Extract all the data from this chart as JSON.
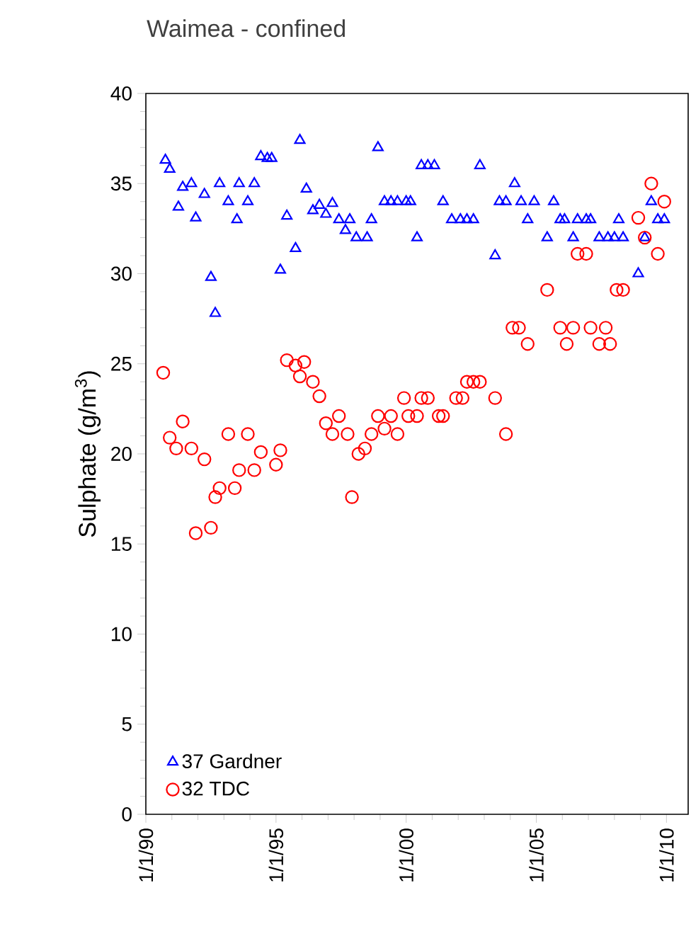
{
  "chart_data": {
    "type": "scatter",
    "title": "Waimea - confined",
    "ylabel": "Sulphate (g/m$^{3}$)",
    "xlim": [
      "1990-01-01",
      "2010-11-01"
    ],
    "ylim": [
      0,
      40
    ],
    "xticks": [
      {
        "value": "1990-01-01",
        "label": "1/1/90"
      },
      {
        "value": "1995-01-01",
        "label": "1/1/95"
      },
      {
        "value": "2000-01-01",
        "label": "1/1/00"
      },
      {
        "value": "2005-01-01",
        "label": "1/1/05"
      },
      {
        "value": "2010-01-01",
        "label": "1/1/10"
      }
    ],
    "yticks": [
      0,
      5,
      10,
      15,
      20,
      25,
      30,
      35,
      40
    ],
    "legend": "bottom left",
    "series": [
      {
        "name": "37 Gardner",
        "color": "#0000ff",
        "marker": "triangle",
        "x": [
          "1990-10",
          "1990-12",
          "1991-04",
          "1991-06",
          "1991-10",
          "1991-12",
          "1992-04",
          "1992-07",
          "1992-09",
          "1992-11",
          "1993-03",
          "1993-07",
          "1993-08",
          "1993-12",
          "1994-03",
          "1994-06",
          "1994-09",
          "1994-11",
          "1995-03",
          "1995-06",
          "1995-10",
          "1995-12",
          "1996-03",
          "1996-06",
          "1996-09",
          "1996-12",
          "1997-03",
          "1997-06",
          "1997-09",
          "1997-11",
          "1998-02",
          "1998-07",
          "1998-09",
          "1998-12",
          "1999-03",
          "1999-06",
          "1999-09",
          "2000-01",
          "2000-03",
          "2000-06",
          "2000-08",
          "2000-11",
          "2001-02",
          "2001-06",
          "2001-10",
          "2002-02",
          "2002-05",
          "2002-08",
          "2002-11",
          "2003-06",
          "2003-08",
          "2003-11",
          "2004-03",
          "2004-06",
          "2004-09",
          "2004-12",
          "2005-06",
          "2005-09",
          "2005-12",
          "2006-02",
          "2006-06",
          "2006-08",
          "2006-12",
          "2007-02",
          "2007-06",
          "2007-10",
          "2008-01",
          "2008-03",
          "2008-05",
          "2008-12",
          "2009-03",
          "2009-06",
          "2009-09",
          "2009-12"
        ],
        "values": [
          36.3,
          35.8,
          33.7,
          34.8,
          35.0,
          33.1,
          34.4,
          29.8,
          27.8,
          35.0,
          34.0,
          33.0,
          35.0,
          34.0,
          35.0,
          36.5,
          36.4,
          36.4,
          30.2,
          33.2,
          31.4,
          37.4,
          34.7,
          33.5,
          33.8,
          33.3,
          33.9,
          33.0,
          32.4,
          33.0,
          32.0,
          32.0,
          33.0,
          37.0,
          34.0,
          34.0,
          34.0,
          34.0,
          34.0,
          32.0,
          36.0,
          36.0,
          36.0,
          34.0,
          33.0,
          33.0,
          33.0,
          33.0,
          36.0,
          31.0,
          34.0,
          34.0,
          35.0,
          34.0,
          33.0,
          34.0,
          32.0,
          34.0,
          33.0,
          33.0,
          32.0,
          33.0,
          33.0,
          33.0,
          32.0,
          32.0,
          32.0,
          33.0,
          32.0,
          30.0,
          32.0,
          34.0,
          33.0,
          33.0
        ]
      },
      {
        "name": "32 TDC",
        "color": "#ff0000",
        "marker": "circle",
        "x": [
          "1990-09",
          "1990-12",
          "1991-03",
          "1991-06",
          "1991-10",
          "1991-12",
          "1992-04",
          "1992-07",
          "1992-09",
          "1992-11",
          "1993-03",
          "1993-06",
          "1993-08",
          "1993-12",
          "1994-03",
          "1994-06",
          "1995-01",
          "1995-03",
          "1995-06",
          "1995-10",
          "1995-12",
          "1996-02",
          "1996-06",
          "1996-09",
          "1996-12",
          "1997-03",
          "1997-06",
          "1997-10",
          "1997-12",
          "1998-03",
          "1998-06",
          "1998-09",
          "1998-12",
          "1999-03",
          "1999-06",
          "1999-09",
          "1999-12",
          "2000-02",
          "2000-06",
          "2000-08",
          "2000-11",
          "2001-04",
          "2001-06",
          "2001-12",
          "2002-03",
          "2002-05",
          "2002-08",
          "2002-11",
          "2003-06",
          "2003-11",
          "2004-02",
          "2004-05",
          "2004-09",
          "2005-06",
          "2005-12",
          "2006-03",
          "2006-06",
          "2006-08",
          "2006-12",
          "2007-02",
          "2007-06",
          "2007-09",
          "2007-11",
          "2008-02",
          "2008-05",
          "2008-12",
          "2009-03",
          "2009-06",
          "2009-09",
          "2009-12"
        ],
        "values": [
          24.5,
          20.9,
          20.3,
          21.8,
          20.3,
          15.6,
          19.7,
          15.9,
          17.6,
          18.1,
          21.1,
          18.1,
          19.1,
          21.1,
          19.1,
          20.1,
          19.4,
          20.2,
          25.2,
          24.9,
          24.3,
          25.1,
          24.0,
          23.2,
          21.7,
          21.1,
          22.1,
          21.1,
          17.6,
          20.0,
          20.3,
          21.1,
          22.1,
          21.4,
          22.1,
          21.1,
          23.1,
          22.1,
          22.1,
          23.1,
          23.1,
          22.1,
          22.1,
          23.1,
          23.1,
          24.0,
          24.0,
          24.0,
          23.1,
          21.1,
          27.0,
          27.0,
          26.1,
          29.1,
          27.0,
          26.1,
          27.0,
          31.1,
          31.1,
          27.0,
          26.1,
          27.0,
          26.1,
          29.1,
          29.1,
          33.1,
          32.0,
          35.0,
          31.1,
          34.0
        ]
      }
    ]
  }
}
